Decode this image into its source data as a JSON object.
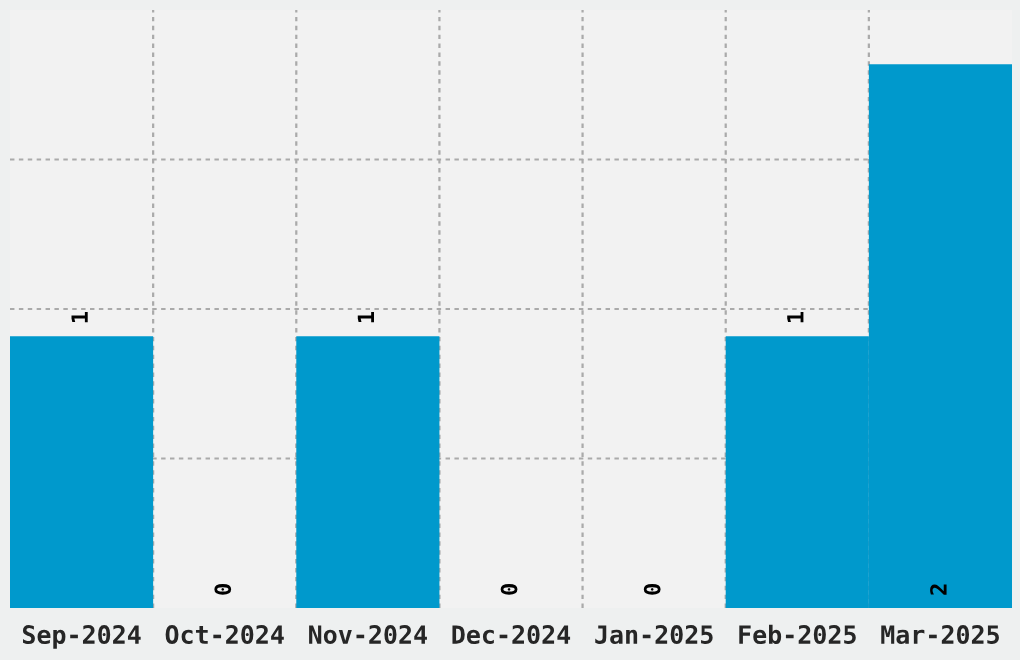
{
  "chart_data": {
    "type": "bar",
    "categories": [
      "Sep-2024",
      "Oct-2024",
      "Nov-2024",
      "Dec-2024",
      "Jan-2025",
      "Feb-2025",
      "Mar-2025"
    ],
    "values": [
      1,
      0,
      1,
      0,
      0,
      1,
      2
    ],
    "color": "#0099cc",
    "ylim": [
      0,
      2.2
    ],
    "yticks": [
      {
        "value": 0.55,
        "label": null
      },
      {
        "value": 1.1,
        "label": null
      },
      {
        "value": 1.65,
        "label": null
      }
    ],
    "tick_labels": "x",
    "grid": true,
    "data_labels": true
  }
}
